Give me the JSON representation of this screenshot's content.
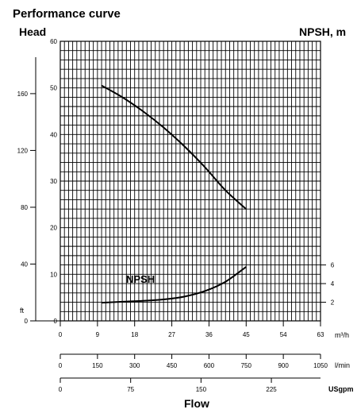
{
  "chart_data": {
    "type": "line",
    "title": "Performance curve",
    "left_axis_label": "Head",
    "right_axis_label": "NPSH, m",
    "xlabel": "Flow",
    "x_unit": "m³/h",
    "xlim": [
      0,
      63
    ],
    "ylim_m": [
      0,
      60
    ],
    "grid": true,
    "y_ticks_m": [
      "0",
      "10",
      "20",
      "30",
      "40",
      "50",
      "60"
    ],
    "y_ticks_ft": [
      "0",
      "40",
      "80",
      "120",
      "160"
    ],
    "y_ticks_ft_values": [
      0,
      40,
      80,
      120,
      160
    ],
    "y_unit_ft": "ft",
    "npsh_ticks": [
      "2",
      "4",
      "6"
    ],
    "npsh_ticks_values": [
      2,
      4,
      6
    ],
    "npsh_scale_max": 30,
    "x_ticks_m3h": [
      "0",
      "9",
      "18",
      "27",
      "36",
      "45",
      "54",
      "63"
    ],
    "x_ticks_lmin": [
      "0",
      "150",
      "300",
      "450",
      "600",
      "750",
      "900",
      "1050"
    ],
    "x_unit_lmin": "l/min",
    "x_ticks_usgpm": [
      "0",
      "75",
      "150",
      "225"
    ],
    "x_unit_usgpm": "USgpm",
    "series": [
      {
        "name": "",
        "x": [
          10,
          15,
          20,
          25,
          30,
          35,
          40,
          45
        ],
        "y": [
          50.5,
          48,
          45,
          41.5,
          37.5,
          33,
          28,
          24
        ]
      },
      {
        "name": "NPSH",
        "x": [
          10,
          15,
          20,
          25,
          30,
          35,
          40,
          45
        ],
        "y": [
          1.95,
          2.05,
          2.15,
          2.3,
          2.6,
          3.2,
          4.2,
          5.8
        ]
      }
    ]
  }
}
